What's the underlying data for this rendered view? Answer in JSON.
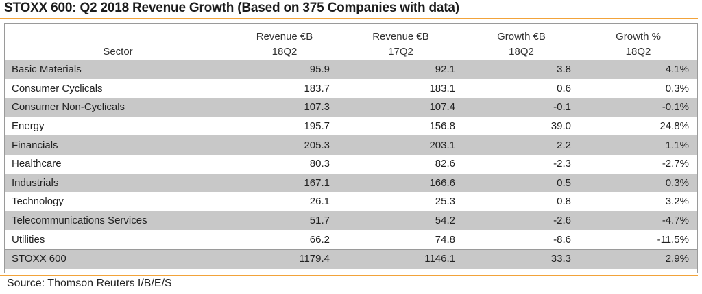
{
  "title": "STOXX 600: Q2 2018 Revenue Growth (Based on 375 Companies with data)",
  "columns": {
    "sector": "Sector",
    "rev18": {
      "label": "Revenue €B",
      "period": "18Q2"
    },
    "rev17": {
      "label": "Revenue €B",
      "period": "17Q2"
    },
    "growth_eur": {
      "label": "Growth €B",
      "period": "18Q2"
    },
    "growth_pct": {
      "label": "Growth %",
      "period": "18Q2"
    }
  },
  "rows": [
    {
      "sector": "Basic Materials",
      "rev18": "95.9",
      "rev17": "92.1",
      "growth_eur": "3.8",
      "growth_pct": "4.1%"
    },
    {
      "sector": "Consumer Cyclicals",
      "rev18": "183.7",
      "rev17": "183.1",
      "growth_eur": "0.6",
      "growth_pct": "0.3%"
    },
    {
      "sector": "Consumer Non-Cyclicals",
      "rev18": "107.3",
      "rev17": "107.4",
      "growth_eur": "-0.1",
      "growth_pct": "-0.1%"
    },
    {
      "sector": "Energy",
      "rev18": "195.7",
      "rev17": "156.8",
      "growth_eur": "39.0",
      "growth_pct": "24.8%"
    },
    {
      "sector": "Financials",
      "rev18": "205.3",
      "rev17": "203.1",
      "growth_eur": "2.2",
      "growth_pct": "1.1%"
    },
    {
      "sector": "Healthcare",
      "rev18": "80.3",
      "rev17": "82.6",
      "growth_eur": "-2.3",
      "growth_pct": "-2.7%"
    },
    {
      "sector": "Industrials",
      "rev18": "167.1",
      "rev17": "166.6",
      "growth_eur": "0.5",
      "growth_pct": "0.3%"
    },
    {
      "sector": "Technology",
      "rev18": "26.1",
      "rev17": "25.3",
      "growth_eur": "0.8",
      "growth_pct": "3.2%"
    },
    {
      "sector": "Telecommunications Services",
      "rev18": "51.7",
      "rev17": "54.2",
      "growth_eur": "-2.6",
      "growth_pct": "-4.7%"
    },
    {
      "sector": "Utilities",
      "rev18": "66.2",
      "rev17": "74.8",
      "growth_eur": "-8.6",
      "growth_pct": "-11.5%"
    }
  ],
  "total": {
    "sector": "STOXX 600",
    "rev18": "1179.4",
    "rev17": "1146.1",
    "growth_eur": "33.3",
    "growth_pct": "2.9%"
  },
  "source": "Source: Thomson Reuters I/B/E/S",
  "colors": {
    "accent_rule": "#f2a33a",
    "shaded_row": "#c8c8c8",
    "frame": "#9a9a9a"
  }
}
